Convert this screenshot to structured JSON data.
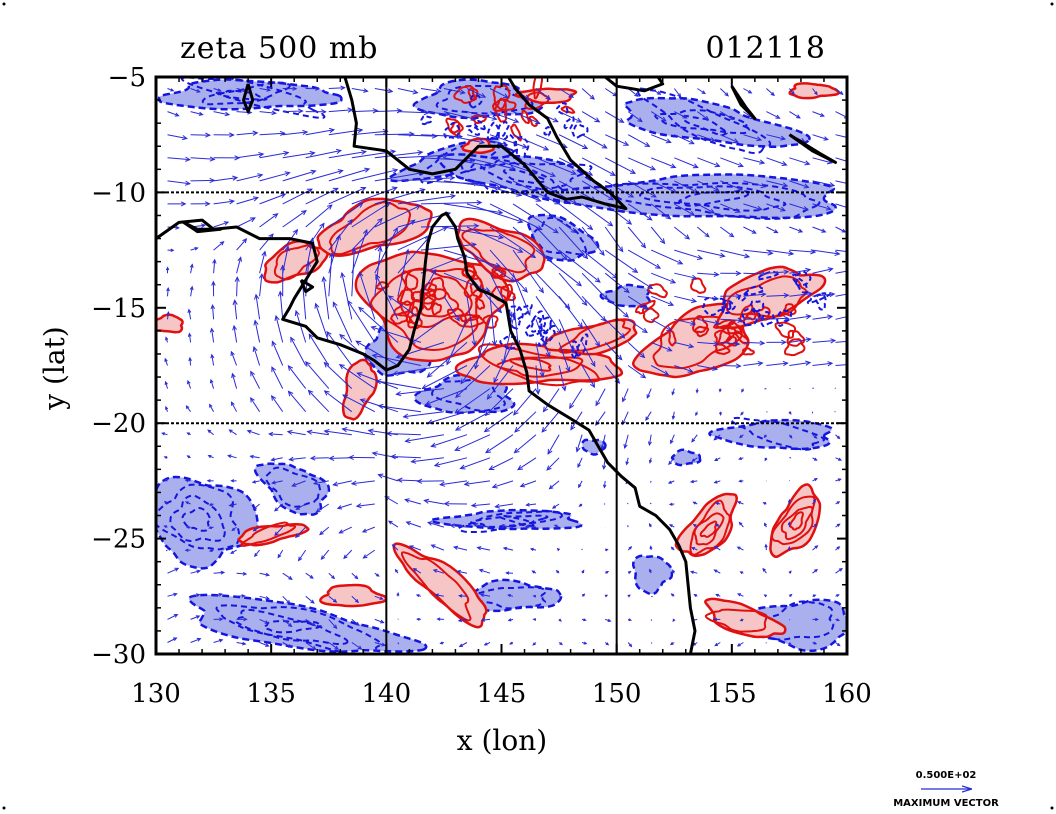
{
  "chart_data": {
    "type": "contour",
    "title_left": "zeta 500 mb",
    "title_right": "012118",
    "xlabel": "x (lon)",
    "ylabel": "y (lat)",
    "xlim": [
      130,
      160
    ],
    "ylim": [
      -30,
      -5
    ],
    "xticks": [
      {
        "value": 130,
        "label": "130"
      },
      {
        "value": 135,
        "label": "135"
      },
      {
        "value": 140,
        "label": "140"
      },
      {
        "value": 145,
        "label": "145"
      },
      {
        "value": 150,
        "label": "150"
      },
      {
        "value": 155,
        "label": "155"
      },
      {
        "value": 160,
        "label": "160"
      }
    ],
    "yticks": [
      {
        "value": -5,
        "label": "−5"
      },
      {
        "value": -10,
        "label": "−10"
      },
      {
        "value": -15,
        "label": "−15"
      },
      {
        "value": -20,
        "label": "−20"
      },
      {
        "value": -25,
        "label": "−25"
      },
      {
        "value": -30,
        "label": "−30"
      }
    ],
    "grid_lon": [
      140,
      150
    ],
    "grid_lat": [
      -10,
      -20
    ],
    "colors": {
      "positive_line": "#e01010",
      "positive_fill": "#f6c6c6",
      "negative_line": "#1515e0",
      "negative_fill": "#aab0ee",
      "vector": "#2a2ad8",
      "coast": "#000000"
    },
    "legend": {
      "value_label": "0.500E+02",
      "caption": "MAXIMUM VECTOR"
    },
    "positive_regions": [
      {
        "lon": 136.0,
        "lat": -13.0,
        "rx": 1.4,
        "ry": 0.7,
        "rot": -20
      },
      {
        "lon": 139.5,
        "lat": -11.5,
        "rx": 2.5,
        "ry": 1.0,
        "rot": -15
      },
      {
        "lon": 142.0,
        "lat": -14.8,
        "rx": 3.0,
        "ry": 2.3,
        "rot": 10
      },
      {
        "lon": 145.0,
        "lat": -12.5,
        "rx": 2.0,
        "ry": 1.0,
        "rot": 25
      },
      {
        "lon": 146.5,
        "lat": -17.5,
        "rx": 3.5,
        "ry": 0.8,
        "rot": 0
      },
      {
        "lon": 149.0,
        "lat": -16.3,
        "rx": 2.0,
        "ry": 0.6,
        "rot": -10
      },
      {
        "lon": 153.5,
        "lat": -16.5,
        "rx": 2.5,
        "ry": 1.3,
        "rot": -25
      },
      {
        "lon": 156.5,
        "lat": -14.5,
        "rx": 2.3,
        "ry": 1.0,
        "rot": -20
      },
      {
        "lon": 138.8,
        "lat": -18.5,
        "rx": 0.6,
        "ry": 1.3,
        "rot": 15
      },
      {
        "lon": 142.5,
        "lat": -27.0,
        "rx": 2.5,
        "ry": 0.7,
        "rot": 40
      },
      {
        "lon": 138.5,
        "lat": -27.5,
        "rx": 1.3,
        "ry": 0.45,
        "rot": 0
      },
      {
        "lon": 135.0,
        "lat": -24.8,
        "rx": 1.5,
        "ry": 0.35,
        "rot": -10
      },
      {
        "lon": 154.0,
        "lat": -24.5,
        "rx": 0.8,
        "ry": 1.6,
        "rot": 40
      },
      {
        "lon": 157.8,
        "lat": -24.3,
        "rx": 0.8,
        "ry": 1.6,
        "rot": 30
      },
      {
        "lon": 155.5,
        "lat": -28.5,
        "rx": 1.7,
        "ry": 0.6,
        "rot": 20
      },
      {
        "lon": 130.5,
        "lat": -15.7,
        "rx": 0.7,
        "ry": 0.35,
        "rot": 0
      },
      {
        "lon": 144.0,
        "lat": -8.0,
        "rx": 0.6,
        "ry": 0.3,
        "rot": 0
      },
      {
        "lon": 147.0,
        "lat": -5.8,
        "rx": 1.2,
        "ry": 0.3,
        "rot": 0
      },
      {
        "lon": 158.5,
        "lat": -5.6,
        "rx": 1.0,
        "ry": 0.3,
        "rot": 0
      }
    ],
    "negative_regions": [
      {
        "lon": 134.0,
        "lat": -5.8,
        "rx": 3.8,
        "ry": 0.6,
        "rot": 0
      },
      {
        "lon": 144.0,
        "lat": -6.0,
        "rx": 2.5,
        "ry": 0.8,
        "rot": 0
      },
      {
        "lon": 143.0,
        "lat": -8.6,
        "rx": 2.5,
        "ry": 0.6,
        "rot": -15
      },
      {
        "lon": 146.0,
        "lat": -9.3,
        "rx": 3.5,
        "ry": 0.8,
        "rot": 10
      },
      {
        "lon": 154.0,
        "lat": -7.0,
        "rx": 4.0,
        "ry": 0.8,
        "rot": 10
      },
      {
        "lon": 154.0,
        "lat": -10.2,
        "rx": 6.0,
        "ry": 0.9,
        "rot": 0
      },
      {
        "lon": 147.5,
        "lat": -12.0,
        "rx": 1.5,
        "ry": 0.9,
        "rot": 20
      },
      {
        "lon": 140.5,
        "lat": -16.8,
        "rx": 1.3,
        "ry": 1.2,
        "rot": 0
      },
      {
        "lon": 143.5,
        "lat": -18.8,
        "rx": 2.0,
        "ry": 0.8,
        "rot": 0
      },
      {
        "lon": 150.5,
        "lat": -14.5,
        "rx": 1.0,
        "ry": 0.45,
        "rot": 0
      },
      {
        "lon": 132.0,
        "lat": -24.2,
        "rx": 2.3,
        "ry": 1.8,
        "rot": 10
      },
      {
        "lon": 136.0,
        "lat": -22.8,
        "rx": 1.6,
        "ry": 0.9,
        "rot": 30
      },
      {
        "lon": 136.0,
        "lat": -28.8,
        "rx": 4.8,
        "ry": 0.9,
        "rot": 10
      },
      {
        "lon": 145.5,
        "lat": -27.5,
        "rx": 2.0,
        "ry": 0.6,
        "rot": 0
      },
      {
        "lon": 145.5,
        "lat": -24.2,
        "rx": 3.0,
        "ry": 0.4,
        "rot": 0
      },
      {
        "lon": 151.5,
        "lat": -26.5,
        "rx": 0.8,
        "ry": 0.8,
        "rot": 0
      },
      {
        "lon": 158.0,
        "lat": -28.7,
        "rx": 2.2,
        "ry": 1.0,
        "rot": 0
      },
      {
        "lon": 157.0,
        "lat": -20.5,
        "rx": 2.5,
        "ry": 0.6,
        "rot": 0
      },
      {
        "lon": 153.0,
        "lat": -21.5,
        "rx": 0.6,
        "ry": 0.3,
        "rot": 0
      },
      {
        "lon": 149.0,
        "lat": -21.0,
        "rx": 0.5,
        "ry": 0.3,
        "rot": 0
      }
    ],
    "coastlines": [
      [
        [
          130,
          -12.0
        ],
        [
          131.0,
          -11.3
        ],
        [
          132.0,
          -11.2
        ],
        [
          132.5,
          -11.6
        ],
        [
          133.5,
          -11.5
        ],
        [
          134.5,
          -12.0
        ],
        [
          135.8,
          -12.0
        ],
        [
          136.8,
          -12.2
        ],
        [
          137.0,
          -13.0
        ],
        [
          136.5,
          -13.8
        ],
        [
          136.0,
          -14.6
        ],
        [
          135.8,
          -15.0
        ],
        [
          135.5,
          -15.5
        ],
        [
          136.5,
          -15.8
        ],
        [
          137.0,
          -16.3
        ],
        [
          138.0,
          -16.6
        ],
        [
          139.0,
          -17.0
        ],
        [
          139.5,
          -17.3
        ],
        [
          140.0,
          -17.7
        ],
        [
          140.5,
          -17.5
        ],
        [
          141.0,
          -16.8
        ],
        [
          141.2,
          -16.0
        ],
        [
          141.5,
          -15.0
        ],
        [
          141.6,
          -14.0
        ],
        [
          141.7,
          -13.0
        ],
        [
          141.8,
          -12.2
        ],
        [
          142.0,
          -11.5
        ],
        [
          142.4,
          -11.0
        ],
        [
          142.6,
          -10.9
        ],
        [
          143.0,
          -11.5
        ],
        [
          143.1,
          -12.0
        ],
        [
          143.4,
          -12.8
        ],
        [
          143.5,
          -13.5
        ],
        [
          144.0,
          -14.2
        ],
        [
          144.5,
          -14.4
        ],
        [
          145.2,
          -14.8
        ],
        [
          145.4,
          -16.0
        ],
        [
          145.8,
          -16.8
        ],
        [
          146.1,
          -17.8
        ],
        [
          146.2,
          -18.6
        ],
        [
          147.0,
          -19.2
        ],
        [
          148.0,
          -19.8
        ],
        [
          148.8,
          -20.3
        ],
        [
          149.2,
          -21.0
        ],
        [
          149.6,
          -21.7
        ],
        [
          150.2,
          -22.3
        ],
        [
          150.8,
          -22.8
        ],
        [
          151.0,
          -23.6
        ],
        [
          151.7,
          -24.0
        ],
        [
          152.3,
          -24.6
        ],
        [
          152.7,
          -25.3
        ],
        [
          153.0,
          -26.0
        ],
        [
          153.1,
          -27.0
        ],
        [
          153.2,
          -28.0
        ],
        [
          153.4,
          -29.0
        ],
        [
          153.2,
          -30.0
        ]
      ],
      [
        [
          138.2,
          -5.0
        ],
        [
          138.5,
          -6.0
        ],
        [
          138.7,
          -7.0
        ],
        [
          138.6,
          -8.0
        ],
        [
          140.0,
          -8.2
        ],
        [
          141.0,
          -9.0
        ],
        [
          142.0,
          -9.2
        ],
        [
          143.0,
          -9.0
        ],
        [
          144.0,
          -8.0
        ],
        [
          145.0,
          -8.0
        ],
        [
          146.0,
          -8.8
        ],
        [
          147.0,
          -10.0
        ],
        [
          147.8,
          -10.3
        ],
        [
          148.5,
          -10.2
        ],
        [
          149.5,
          -10.5
        ],
        [
          150.4,
          -10.7
        ],
        [
          149.7,
          -10.0
        ],
        [
          149.0,
          -9.5
        ],
        [
          148.0,
          -8.6
        ],
        [
          147.4,
          -7.6
        ],
        [
          147.0,
          -6.8
        ],
        [
          146.2,
          -6.2
        ],
        [
          145.6,
          -5.5
        ],
        [
          145.3,
          -5.0
        ]
      ],
      [
        [
          149.5,
          -5.0
        ],
        [
          150.0,
          -5.4
        ],
        [
          151.2,
          -5.6
        ],
        [
          152.0,
          -5.3
        ],
        [
          151.8,
          -5.0
        ]
      ],
      [
        [
          134.0,
          -5.3
        ],
        [
          134.2,
          -6.0
        ],
        [
          134.0,
          -6.5
        ],
        [
          133.8,
          -6.0
        ],
        [
          134.0,
          -5.3
        ]
      ],
      [
        [
          155.0,
          -5.4
        ],
        [
          155.6,
          -6.3
        ],
        [
          156.0,
          -6.8
        ],
        [
          155.4,
          -6.2
        ],
        [
          155.0,
          -5.4
        ]
      ],
      [
        [
          157.5,
          -7.5
        ],
        [
          158.5,
          -8.2
        ],
        [
          159.5,
          -8.7
        ],
        [
          158.8,
          -8.3
        ],
        [
          157.5,
          -7.5
        ]
      ],
      [
        [
          131.2,
          -11.3
        ],
        [
          131.8,
          -11.7
        ],
        [
          132.8,
          -11.6
        ],
        [
          131.8,
          -11.6
        ],
        [
          131.2,
          -11.3
        ]
      ],
      [
        [
          136.3,
          -13.8
        ],
        [
          136.8,
          -14.1
        ],
        [
          136.5,
          -14.3
        ],
        [
          136.3,
          -13.8
        ]
      ]
    ],
    "wind_vectors": "blue arrows across the field; max vector 0.500E+02"
  }
}
